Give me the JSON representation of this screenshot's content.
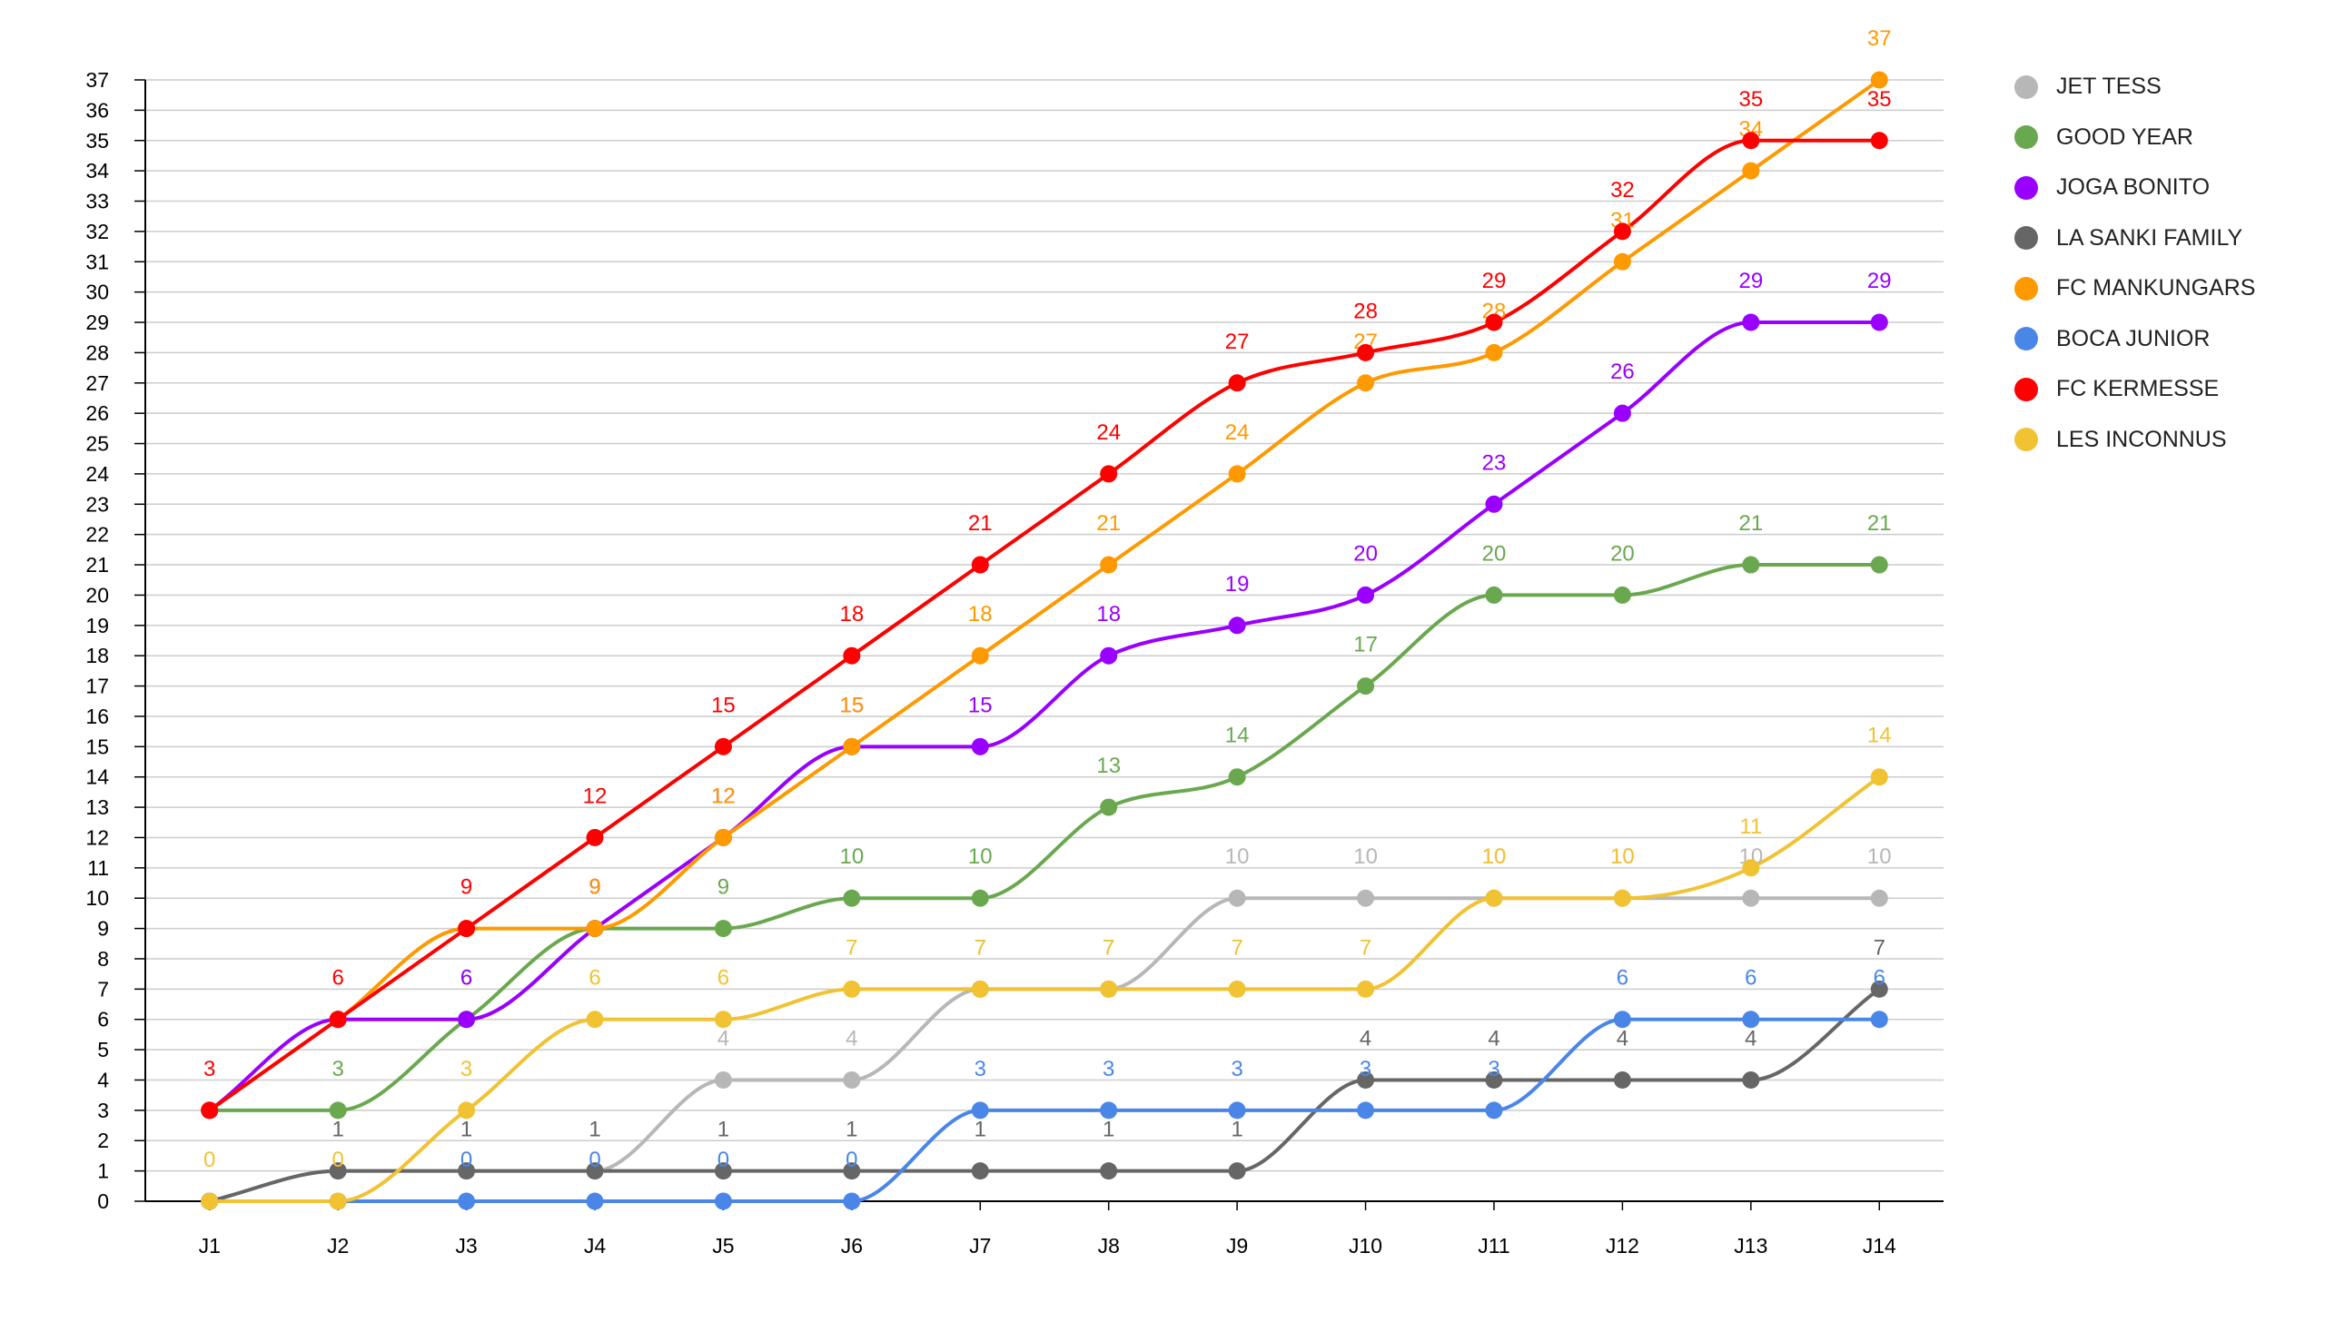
{
  "chart_data": {
    "type": "line",
    "title": "",
    "xlabel": "",
    "ylabel": "",
    "categories": [
      "J1",
      "J2",
      "J3",
      "J4",
      "J5",
      "J6",
      "J7",
      "J8",
      "J9",
      "J10",
      "J11",
      "J12",
      "J13",
      "J14"
    ],
    "ylim": [
      0,
      37
    ],
    "y_tick_step": 1,
    "grid": true,
    "legend_position": "right",
    "series": [
      {
        "name": "JET TESS",
        "color": "#b7b7b7",
        "values": [
          0,
          1,
          1,
          1,
          4,
          4,
          7,
          7,
          10,
          10,
          10,
          10,
          10,
          10
        ],
        "label_from": 2
      },
      {
        "name": "GOOD YEAR",
        "color": "#6aa84f",
        "values": [
          3,
          3,
          6,
          9,
          9,
          10,
          10,
          13,
          14,
          17,
          20,
          20,
          21,
          21
        ],
        "label_from": 1
      },
      {
        "name": "JOGA BONITO",
        "color": "#9900ff",
        "values": [
          3,
          6,
          6,
          9,
          12,
          15,
          15,
          18,
          19,
          20,
          23,
          26,
          29,
          29
        ],
        "label_from": 2
      },
      {
        "name": "LA SANKI FAMILY",
        "color": "#666666",
        "values": [
          0,
          1,
          1,
          1,
          1,
          1,
          1,
          1,
          1,
          4,
          4,
          4,
          4,
          7
        ],
        "label_from": 1
      },
      {
        "name": "FC MANKUNGARS",
        "color": "#ff9900",
        "values": [
          3,
          6,
          9,
          9,
          12,
          15,
          18,
          21,
          24,
          27,
          28,
          31,
          34,
          37
        ],
        "label_from": 3
      },
      {
        "name": "BOCA JUNIOR",
        "color": "#4a86e8",
        "values": [
          0,
          0,
          0,
          0,
          0,
          0,
          3,
          3,
          3,
          3,
          3,
          6,
          6,
          6
        ],
        "label_from": 2
      },
      {
        "name": "FC KERMESSE",
        "color": "#ff0000",
        "values": [
          3,
          6,
          9,
          12,
          15,
          18,
          21,
          24,
          27,
          28,
          29,
          32,
          35,
          35
        ],
        "label_from": 0
      },
      {
        "name": "LES INCONNUS",
        "color": "#f1c232",
        "values": [
          0,
          0,
          3,
          6,
          6,
          7,
          7,
          7,
          7,
          7,
          10,
          10,
          11,
          14
        ],
        "label_from": 0
      }
    ]
  }
}
